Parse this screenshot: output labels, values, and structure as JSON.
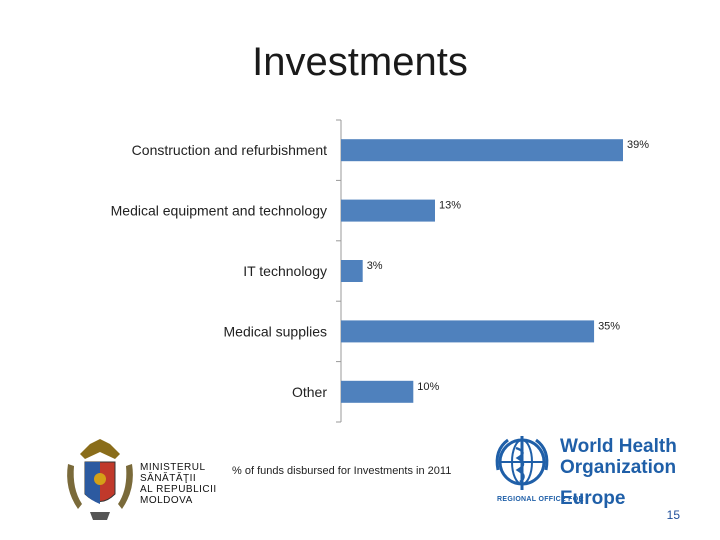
{
  "slide": {
    "title": "Investments",
    "caption": "% of funds disbursed for Investments in 2011",
    "page_number": "15"
  },
  "ministry_logo": {
    "lines": [
      "MINISTERUL",
      "SĂNĂTĂŢII",
      "AL REPUBLICII",
      "MOLDOVA"
    ]
  },
  "who_logo": {
    "name_line1": "World Health",
    "name_line2": "Organization",
    "regional_office": "REGIONAL OFFICE FOR",
    "region": "Europe"
  },
  "chart_data": {
    "type": "bar",
    "orientation": "horizontal",
    "categories": [
      "Construction and refurbishment",
      "Medical equipment and technology",
      "IT technology",
      "Medical supplies",
      "Other"
    ],
    "values": [
      39,
      13,
      3,
      35,
      10
    ],
    "data_labels": [
      "39%",
      "13%",
      "3%",
      "35%",
      "10%"
    ],
    "unit": "%",
    "xlim": [
      0,
      40
    ],
    "bar_color": "#4f81bd",
    "grid": false,
    "legend": "none"
  }
}
